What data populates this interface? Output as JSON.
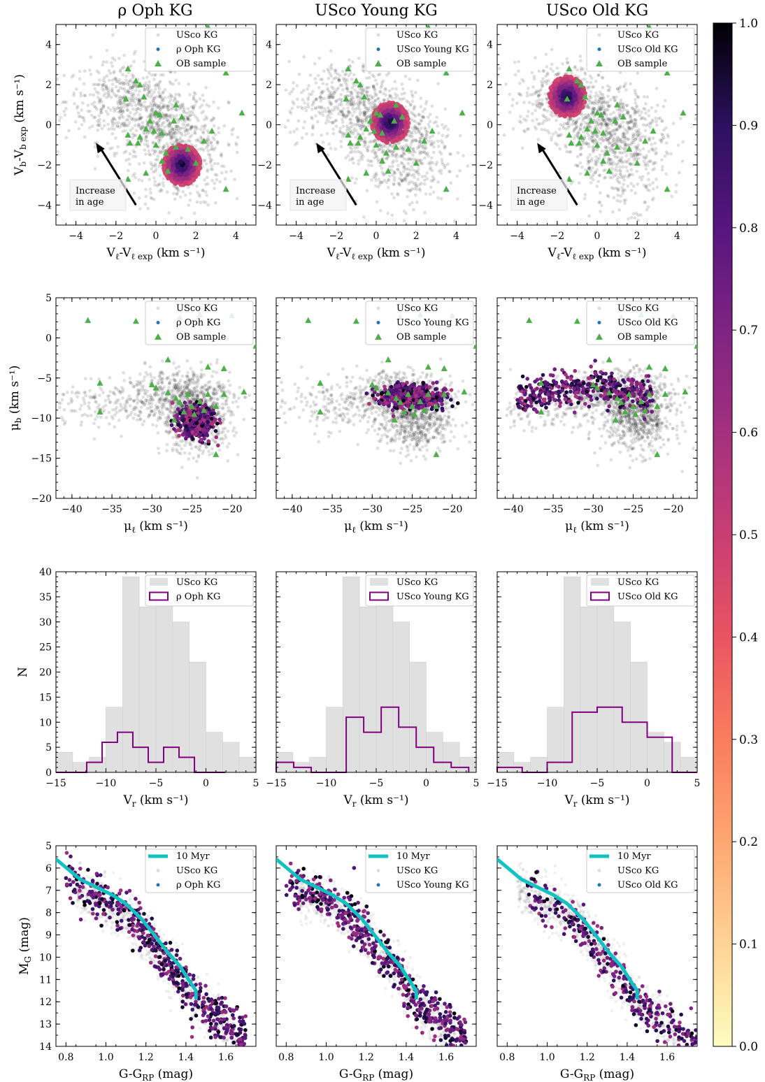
{
  "titles": [
    "ρ Oph KG",
    "USco Young KG",
    "USco Old KG"
  ],
  "kg_names": [
    "ρ Oph KG",
    "USco Young KG",
    "USco Old KG"
  ],
  "colorbar": {
    "ticks": [
      "0.0",
      "0.1",
      "0.2",
      "0.3",
      "0.4",
      "0.5",
      "0.6",
      "0.7",
      "0.8",
      "0.9",
      "1.0"
    ],
    "range": [
      0,
      1
    ],
    "colormap": "magma_r"
  },
  "colors": {
    "background": "#b4b4b4",
    "ob": "#4daf4a",
    "hist_kg": "#800080",
    "hist_bg": "#e0e0e0",
    "isochrone": "#12c2c2",
    "legend_dot": "#1f77b4"
  },
  "chart_data": [
    {
      "type": "scatter",
      "row": "velocity",
      "xlabel": "V_ℓ-V_ℓ exp (km s⁻¹)",
      "ylabel": "V_b-V_b exp (km s⁻¹)",
      "xlim": [
        -5,
        5
      ],
      "ylim": [
        -5,
        5
      ],
      "xticks": [
        "−4",
        "−2",
        "0",
        "2",
        "4"
      ],
      "yticks": [
        "−4",
        "−2",
        "0",
        "2",
        "4"
      ],
      "legend": [
        "USco KG",
        "KG",
        "OB sample"
      ],
      "annotation": "Increase\nin age",
      "arrow": {
        "from": [
          -1,
          -4
        ],
        "to": [
          -3.0,
          -0.9
        ]
      },
      "kg_centers": [
        [
          1.3,
          -2.0
        ],
        [
          0.7,
          0.1
        ],
        [
          -1.5,
          1.4
        ]
      ],
      "kg_radius": 0.9,
      "background_clusters": [
        {
          "center": [
            -1.5,
            1.2
          ],
          "spread": [
            1.5,
            1.0
          ],
          "n": 450
        },
        {
          "center": [
            1.2,
            -1.5
          ],
          "spread": [
            1.2,
            1.3
          ],
          "n": 450
        },
        {
          "center": [
            0.5,
            0.0
          ],
          "spread": [
            1.2,
            0.9
          ],
          "n": 300
        }
      ],
      "ob_points": [
        [
          -1.4,
          2.8
        ],
        [
          -1.0,
          2.2
        ],
        [
          -0.8,
          2.0
        ],
        [
          -0.6,
          1.4
        ],
        [
          -1.5,
          1.3
        ],
        [
          0,
          0.6
        ],
        [
          0.2,
          0.5
        ],
        [
          -0.3,
          0.2
        ],
        [
          -0.5,
          -0.2
        ],
        [
          -0.1,
          -0.3
        ],
        [
          0.3,
          -0.4
        ],
        [
          -1.4,
          -0.5
        ],
        [
          -0.8,
          -0.6
        ],
        [
          -0.9,
          -0.9
        ],
        [
          -1.3,
          -0.9
        ],
        [
          0,
          -1.0
        ],
        [
          0.5,
          -1.4
        ],
        [
          1.0,
          -1.1
        ],
        [
          1.6,
          -1.2
        ],
        [
          2.4,
          -0.8
        ],
        [
          2.8,
          -0.3
        ],
        [
          1.0,
          1.0
        ],
        [
          0.9,
          0.2
        ],
        [
          1.3,
          0.4
        ],
        [
          4.3,
          0.6
        ],
        [
          2.6,
          4.9
        ],
        [
          3.5,
          2.6
        ],
        [
          -1.4,
          -2.7
        ],
        [
          3.5,
          -3.2
        ],
        [
          0.6,
          -2.3
        ],
        [
          2.0,
          -1.9
        ],
        [
          -0.5,
          -2.4
        ],
        [
          0.3,
          -1.8
        ]
      ]
    },
    {
      "type": "scatter",
      "row": "proper_motion",
      "xlabel": "μ_ℓ (km s⁻¹)",
      "ylabel": "μ_b (km s⁻¹)",
      "xlim": [
        -42,
        -17
      ],
      "ylim": [
        -20,
        5
      ],
      "xticks": [
        "−40",
        "−35",
        "−30",
        "−25",
        "−20"
      ],
      "yticks": [
        "−20",
        "−15",
        "−10",
        "−5",
        "0",
        "5"
      ],
      "legend": [
        "USco KG",
        "KG",
        "OB sample"
      ],
      "kg_regions": [
        {
          "center": [
            -24.5,
            -10.5
          ],
          "spread": [
            1.8,
            1.6
          ],
          "shape": "blob"
        },
        {
          "center": [
            -25.0,
            -7.3
          ],
          "spread": [
            3.5,
            1.2
          ],
          "shape": "band"
        },
        {
          "center": [
            -31.0,
            -7.0
          ],
          "spread": [
            8.5,
            1.5
          ],
          "shape": "arc"
        }
      ],
      "background_clusters": [
        {
          "center": [
            -24.5,
            -10.0
          ],
          "spread": [
            2.2,
            2.2
          ],
          "n": 650
        },
        {
          "center": [
            -27.0,
            -7.0
          ],
          "spread": [
            3.5,
            1.6
          ],
          "n": 450
        },
        {
          "center": [
            -36.0,
            -8.5
          ],
          "spread": [
            3.5,
            1.5
          ],
          "n": 150
        }
      ],
      "ob_points": [
        [
          -38,
          2.2
        ],
        [
          -32,
          2.1
        ],
        [
          -26.5,
          2.6
        ],
        [
          -24,
          2.9
        ],
        [
          -20,
          2.8
        ],
        [
          -17,
          -1
        ],
        [
          -28,
          -2.7
        ],
        [
          -23,
          -3.6
        ],
        [
          -21,
          -3.8
        ],
        [
          -36.5,
          -5.6
        ],
        [
          -30,
          -5.8
        ],
        [
          -29.5,
          -6.2
        ],
        [
          -28,
          -6.8
        ],
        [
          -27,
          -7.5
        ],
        [
          -26.5,
          -8.0
        ],
        [
          -25,
          -8.5
        ],
        [
          -24,
          -7.9
        ],
        [
          -23,
          -7.0
        ],
        [
          -22,
          -8.5
        ],
        [
          -21,
          -7.0
        ],
        [
          -26,
          -9.2
        ],
        [
          -27.2,
          -10.2
        ],
        [
          -24.7,
          -9.5
        ],
        [
          -18.5,
          -6.7
        ],
        [
          -36.5,
          -9.2
        ],
        [
          -22,
          -14.5
        ],
        [
          -25.5,
          -7.0
        ],
        [
          -23.5,
          -9.0
        ]
      ]
    },
    {
      "type": "bar",
      "row": "radial_velocity",
      "xlabel": "V_r (km s⁻¹)",
      "ylabel": "N",
      "xlim": [
        -15,
        5
      ],
      "ylim": [
        0,
        40
      ],
      "xticks": [
        "−15",
        "−10",
        "−5",
        "0",
        "5"
      ],
      "yticks": [
        "0",
        "5",
        "10",
        "15",
        "20",
        "25",
        "30",
        "35",
        "40"
      ],
      "legend": [
        "USco KG",
        "KG"
      ],
      "bin_edges": [
        -15,
        -13.33,
        -11.67,
        -10,
        -8.33,
        -6.67,
        -5,
        -3.33,
        -1.67,
        0,
        1.67,
        3.33,
        5
      ],
      "background_hist": [
        4,
        2,
        3,
        13,
        39,
        33,
        34,
        30,
        22,
        8,
        6,
        3
      ],
      "kg_hist": [
        {
          "edges": [
            -15,
            -13.46,
            -11.92,
            -10.38,
            -8.85,
            -7.31,
            -5.77,
            -4.23,
            -2.69,
            -1.15,
            0.38,
            1.92
          ],
          "counts": [
            0,
            0,
            2,
            6,
            8,
            5,
            2,
            5,
            3,
            0,
            0
          ]
        },
        {
          "edges": [
            -15,
            -13.25,
            -11.5,
            -9.75,
            -8,
            -6.25,
            -4.5,
            -2.75,
            -1,
            0.75,
            2.5,
            4.25
          ],
          "counts": [
            2,
            1,
            0,
            0,
            11,
            8,
            13,
            9,
            5,
            2,
            1
          ]
        },
        {
          "edges": [
            -15,
            -12.5,
            -10,
            -7.5,
            -5,
            -2.5,
            0,
            2.5,
            5
          ],
          "counts": [
            1,
            0,
            2,
            12,
            13,
            10,
            7,
            0
          ]
        }
      ]
    },
    {
      "type": "scatter",
      "row": "cmd",
      "xlabel": "G-G_RP (mag)",
      "ylabel": "M_G (mag)",
      "xlim": [
        0.75,
        1.75
      ],
      "ylim": [
        14,
        5
      ],
      "xticks": [
        "0.8",
        "1.0",
        "1.2",
        "1.4",
        "1.6"
      ],
      "yticks": [
        "5",
        "6",
        "7",
        "8",
        "9",
        "10",
        "11",
        "12",
        "13",
        "14"
      ],
      "legend": [
        "10 Myr",
        "USco KG",
        "KG"
      ],
      "isochrone": {
        "name": "10 Myr",
        "x": [
          0.75,
          0.87,
          1.03,
          1.1,
          1.18,
          1.25,
          1.31,
          1.37,
          1.42,
          1.45,
          1.45
        ],
        "y": [
          5.6,
          6.5,
          7.2,
          7.6,
          8.3,
          9.1,
          9.8,
          10.4,
          11.1,
          11.5,
          11.9
        ]
      }
    }
  ]
}
